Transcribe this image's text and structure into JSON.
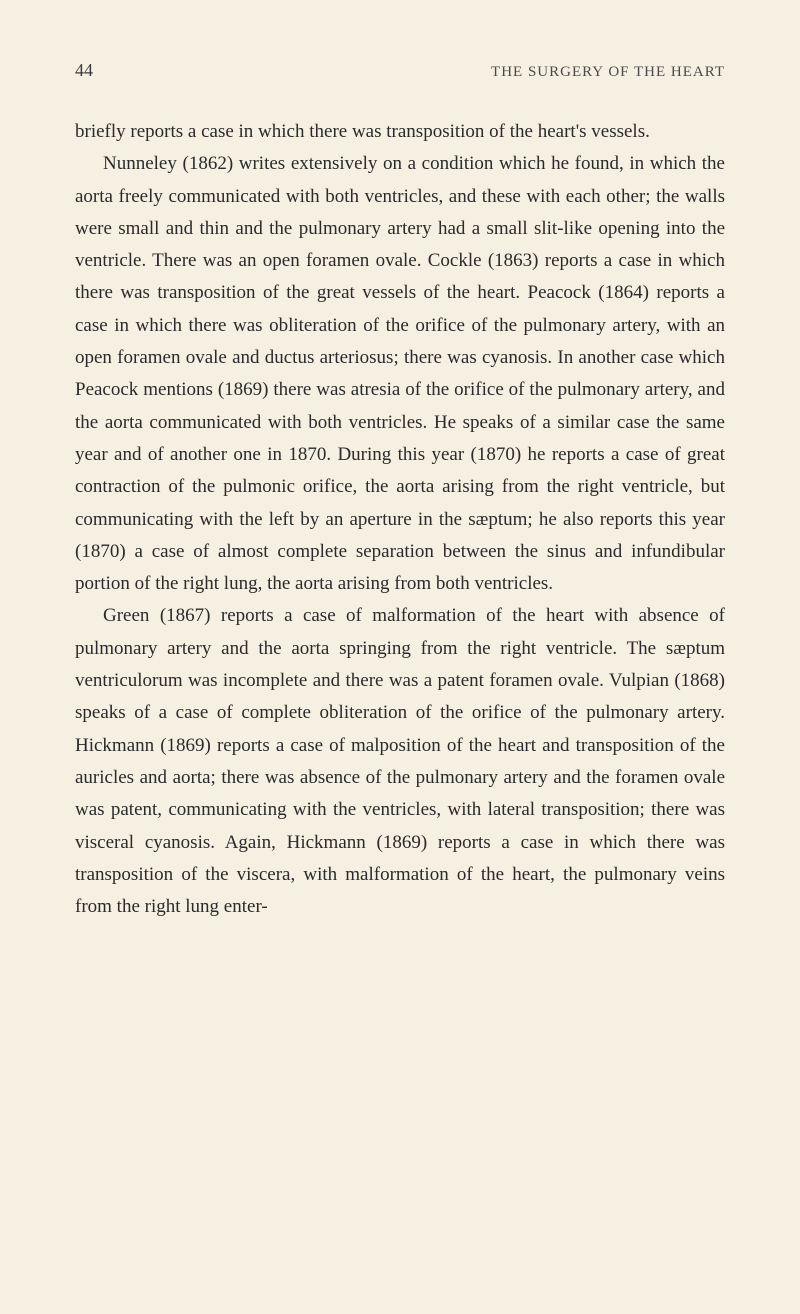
{
  "header": {
    "page_number": "44",
    "running_title": "THE SURGERY OF THE HEART"
  },
  "paragraphs": [
    "briefly reports a case in which there was transposition of the heart's vessels.",
    "Nunneley (1862) writes extensively on a condition which he found, in which the aorta freely communicated with both ventricles, and these with each other; the walls were small and thin and the pulmonary artery had a small slit-like opening into the ventricle. There was an open foramen ovale. Cockle (1863) reports a case in which there was transposition of the great vessels of the heart. Peacock (1864) reports a case in which there was obliteration of the orifice of the pulmonary artery, with an open foramen ovale and ductus arteriosus; there was cyanosis. In another case which Peacock mentions (1869) there was atresia of the orifice of the pulmonary artery, and the aorta communicated with both ventricles. He speaks of a similar case the same year and of another one in 1870. During this year (1870) he reports a case of great contraction of the pulmonic orifice, the aorta arising from the right ventricle, but communicating with the left by an aperture in the sæptum; he also reports this year (1870) a case of almost complete separation between the sinus and infundibular portion of the right lung, the aorta arising from both ventricles.",
    "Green (1867) reports a case of malformation of the heart with absence of pulmonary artery and the aorta springing from the right ventricle. The sæptum ventriculorum was incomplete and there was a patent foramen ovale. Vulpian (1868) speaks of a case of complete obliteration of the orifice of the pulmonary artery. Hickmann (1869) reports a case of malposition of the heart and transposition of the auricles and aorta; there was absence of the pulmonary artery and the foramen ovale was patent, communicating with the ventricles, with lateral transposition; there was visceral cyanosis. Again, Hickmann (1869) reports a case in which there was transposition of the viscera, with malformation of the heart, the pulmonary veins from the right lung enter-"
  ]
}
